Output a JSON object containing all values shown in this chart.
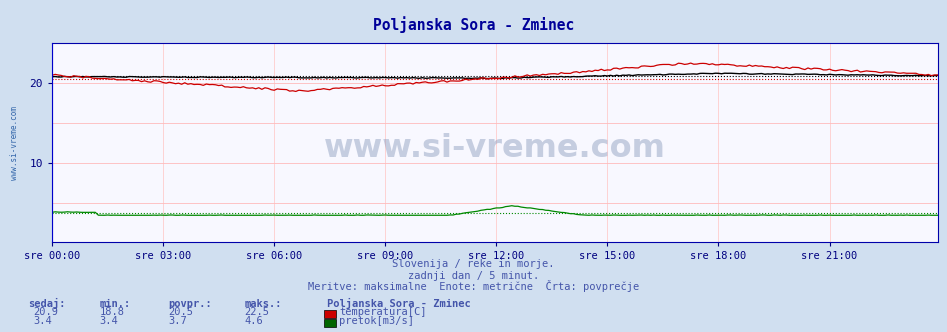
{
  "title": "Poljanska Sora - Zminec",
  "title_color": "#000099",
  "bg_color": "#d0dff0",
  "plot_bg_color": "#f8f8ff",
  "grid_color": "#ffbbbb",
  "grid_color_v": "#ffcccc",
  "xlabel_color": "#000080",
  "ylabel_color": "#000080",
  "xtick_labels": [
    "sre 00:00",
    "sre 03:00",
    "sre 06:00",
    "sre 09:00",
    "sre 12:00",
    "sre 15:00",
    "sre 18:00",
    "sre 21:00"
  ],
  "xtick_positions": [
    0,
    36,
    72,
    108,
    144,
    180,
    216,
    252
  ],
  "ylim": [
    0,
    25
  ],
  "yticks": [
    10,
    20
  ],
  "n_points": 288,
  "temp_color": "#cc0000",
  "temp_avg_color": "#cc0000",
  "flow_color": "#008800",
  "flow_avg_color": "#008800",
  "height_color": "#000000",
  "height_avg_color": "#000000",
  "temp_min": 18.8,
  "temp_max": 22.5,
  "temp_avg": 20.5,
  "temp_current": 20.9,
  "flow_min": 3.4,
  "flow_max": 4.6,
  "flow_avg": 3.7,
  "flow_current": 3.4,
  "height_base": 20.8,
  "watermark": "www.si-vreme.com",
  "subtitle1": "Slovenija / reke in morje.",
  "subtitle2": "zadnji dan / 5 minut.",
  "subtitle3": "Meritve: maksimalne  Enote: metrične  Črta: povprečje",
  "footer_color": "#4455aa",
  "legend_title": "Poljanska Sora - Zminec",
  "legend_temp": "temperatura[C]",
  "legend_flow": "pretok[m3/s]",
  "left_label_color": "#3366aa",
  "left_label": "www.si-vreme.com",
  "spine_color": "#0000aa"
}
